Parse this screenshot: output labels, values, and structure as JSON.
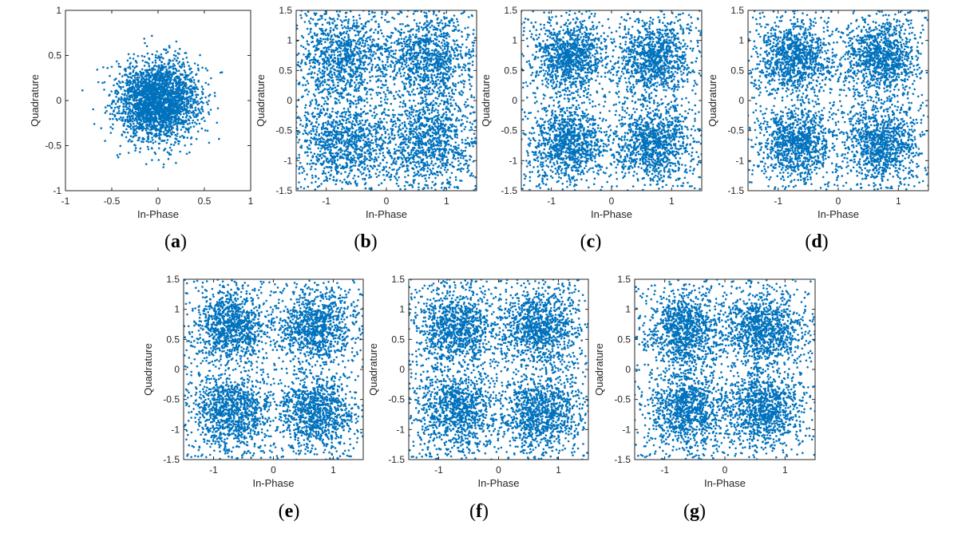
{
  "colors": {
    "points": "#0072BD",
    "axes": "#262626"
  },
  "chart_data": [
    {
      "panel": "a",
      "caption": "(a)",
      "type": "scatter",
      "xlabel": "In-Phase",
      "ylabel": "Quadrature",
      "xlim": [
        -1,
        1
      ],
      "ylim": [
        -1,
        1
      ],
      "xticks": [
        -1,
        -0.5,
        0,
        0.5,
        1
      ],
      "yticks": [
        -1,
        -0.5,
        0,
        0.5,
        1
      ],
      "xtick_labels": [
        "-1",
        "-0.5",
        "0",
        "0.5",
        "1"
      ],
      "ytick_labels": [
        "-1",
        "-0.5",
        "0",
        "0.5",
        "1"
      ],
      "clusters": [
        {
          "center": [
            0,
            0
          ],
          "spread": 0.22
        }
      ],
      "grid": false
    },
    {
      "panel": "b",
      "caption": "(b)",
      "type": "scatter",
      "xlabel": "In-Phase",
      "ylabel": "Quadrature",
      "xlim": [
        -1.5,
        1.5
      ],
      "ylim": [
        -1.5,
        1.5
      ],
      "xticks": [
        -1,
        0,
        1
      ],
      "yticks": [
        -1.5,
        -1,
        -0.5,
        0,
        0.5,
        1,
        1.5
      ],
      "xtick_labels": [
        "-1",
        "0",
        "1"
      ],
      "ytick_labels": [
        "-1.5",
        "-1",
        "-0.5",
        "0",
        "0.5",
        "1",
        "1.5"
      ],
      "clusters": [
        {
          "center": [
            -0.707,
            0.707
          ],
          "spread": 0.38
        },
        {
          "center": [
            0.707,
            0.707
          ],
          "spread": 0.38
        },
        {
          "center": [
            -0.707,
            -0.707
          ],
          "spread": 0.38
        },
        {
          "center": [
            0.707,
            -0.707
          ],
          "spread": 0.38
        }
      ],
      "grid": false
    },
    {
      "panel": "c",
      "caption": "(c)",
      "type": "scatter",
      "xlabel": "In-Phase",
      "ylabel": "Quadrature",
      "xlim": [
        -1.5,
        1.5
      ],
      "ylim": [
        -1.5,
        1.5
      ],
      "xticks": [
        -1,
        0,
        1
      ],
      "yticks": [
        -1.5,
        -1,
        -0.5,
        0,
        0.5,
        1,
        1.5
      ],
      "xtick_labels": [
        "-1",
        "0",
        "1"
      ],
      "ytick_labels": [
        "-1.5",
        "-1",
        "-0.5",
        "0",
        "0.5",
        "1",
        "1.5"
      ],
      "clusters": [
        {
          "center": [
            -0.707,
            0.707
          ],
          "spread": 0.3
        },
        {
          "center": [
            0.707,
            0.707
          ],
          "spread": 0.3
        },
        {
          "center": [
            -0.707,
            -0.707
          ],
          "spread": 0.3
        },
        {
          "center": [
            0.707,
            -0.707
          ],
          "spread": 0.3
        }
      ],
      "grid": false
    },
    {
      "panel": "d",
      "caption": "(d)",
      "type": "scatter",
      "xlabel": "In-Phase",
      "ylabel": "Quadrature",
      "xlim": [
        -1.5,
        1.5
      ],
      "ylim": [
        -1.5,
        1.5
      ],
      "xticks": [
        -1,
        0,
        1
      ],
      "yticks": [
        -1.5,
        -1,
        -0.5,
        0,
        0.5,
        1,
        1.5
      ],
      "xtick_labels": [
        "-1",
        "0",
        "1"
      ],
      "ytick_labels": [
        "-1.5",
        "-1",
        "-0.5",
        "0",
        "0.5",
        "1",
        "1.5"
      ],
      "clusters": [
        {
          "center": [
            -0.707,
            0.707
          ],
          "spread": 0.3
        },
        {
          "center": [
            0.707,
            0.707
          ],
          "spread": 0.3
        },
        {
          "center": [
            -0.707,
            -0.707
          ],
          "spread": 0.3
        },
        {
          "center": [
            0.707,
            -0.707
          ],
          "spread": 0.3
        }
      ],
      "grid": false
    },
    {
      "panel": "e",
      "caption": "(e)",
      "type": "scatter",
      "xlabel": "In-Phase",
      "ylabel": "Quadrature",
      "xlim": [
        -1.5,
        1.5
      ],
      "ylim": [
        -1.5,
        1.5
      ],
      "xticks": [
        -1,
        0,
        1
      ],
      "yticks": [
        -1.5,
        -1,
        -0.5,
        0,
        0.5,
        1,
        1.5
      ],
      "xtick_labels": [
        "-1",
        "0",
        "1"
      ],
      "ytick_labels": [
        "-1.5",
        "-1",
        "-0.5",
        "0",
        "0.5",
        "1",
        "1.5"
      ],
      "clusters": [
        {
          "center": [
            -0.707,
            0.707
          ],
          "spread": 0.3
        },
        {
          "center": [
            0.707,
            0.707
          ],
          "spread": 0.3
        },
        {
          "center": [
            -0.707,
            -0.707
          ],
          "spread": 0.3
        },
        {
          "center": [
            0.707,
            -0.707
          ],
          "spread": 0.3
        }
      ],
      "grid": false
    },
    {
      "panel": "f",
      "caption": "(f)",
      "type": "scatter",
      "xlabel": "In-Phase",
      "ylabel": "Quadrature",
      "xlim": [
        -1.5,
        1.5
      ],
      "ylim": [
        -1.5,
        1.5
      ],
      "xticks": [
        -1,
        0,
        1
      ],
      "yticks": [
        -1.5,
        -1,
        -0.5,
        0,
        0.5,
        1,
        1.5
      ],
      "xtick_labels": [
        "-1",
        "0",
        "1"
      ],
      "ytick_labels": [
        "-1.5",
        "-1",
        "-0.5",
        "0",
        "0.5",
        "1",
        "1.5"
      ],
      "clusters": [
        {
          "center": [
            -0.707,
            0.707
          ],
          "spread": 0.32
        },
        {
          "center": [
            0.707,
            0.707
          ],
          "spread": 0.32
        },
        {
          "center": [
            -0.707,
            -0.707
          ],
          "spread": 0.32
        },
        {
          "center": [
            0.707,
            -0.707
          ],
          "spread": 0.32
        }
      ],
      "grid": false
    },
    {
      "panel": "g",
      "caption": "(g)",
      "type": "scatter",
      "xlabel": "In-Phase",
      "ylabel": "Quadrature",
      "xlim": [
        -1.5,
        1.5
      ],
      "ylim": [
        -1.5,
        1.5
      ],
      "xticks": [
        -1,
        0,
        1
      ],
      "yticks": [
        -1.5,
        -1,
        -0.5,
        0,
        0.5,
        1,
        1.5
      ],
      "xtick_labels": [
        "-1",
        "0",
        "1"
      ],
      "ytick_labels": [
        "-1.5",
        "-1",
        "-0.5",
        "0",
        "0.5",
        "1",
        "1.5"
      ],
      "clusters": [
        {
          "center": [
            -0.65,
            0.65
          ],
          "spread": 0.3
        },
        {
          "center": [
            0.65,
            0.65
          ],
          "spread": 0.3
        },
        {
          "center": [
            -0.65,
            -0.65
          ],
          "spread": 0.3
        },
        {
          "center": [
            0.65,
            -0.65
          ],
          "spread": 0.3
        }
      ],
      "grid": false
    }
  ]
}
